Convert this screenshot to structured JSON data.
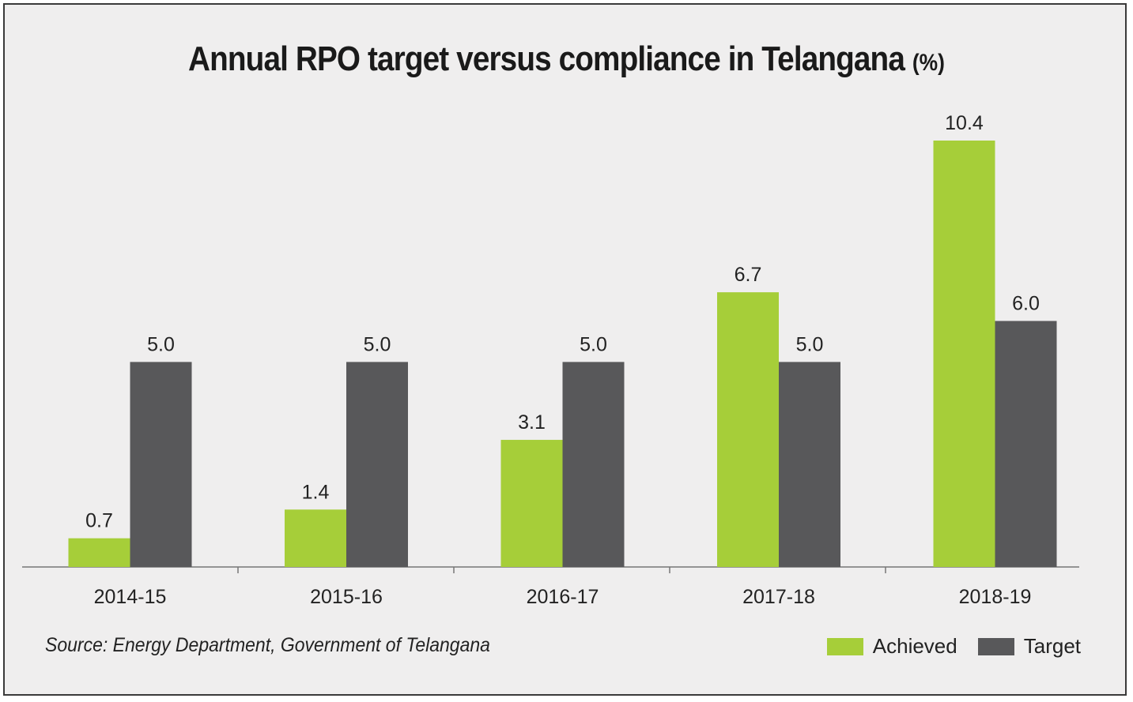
{
  "chart_data": {
    "type": "bar",
    "title": "Annual RPO target versus compliance in Telangana",
    "title_unit": "(%)",
    "categories": [
      "2014-15",
      "2015-16",
      "2016-17",
      "2017-18",
      "2018-19"
    ],
    "series": [
      {
        "name": "Achieved",
        "color": "#a6ce39",
        "values": [
          0.7,
          1.4,
          3.1,
          6.7,
          10.4
        ]
      },
      {
        "name": "Target",
        "color": "#58585a",
        "values": [
          5.0,
          5.0,
          5.0,
          5.0,
          6.0
        ]
      }
    ],
    "value_labels": {
      "Achieved": [
        "0.7",
        "1.4",
        "3.1",
        "6.7",
        "10.4"
      ],
      "Target": [
        "5.0",
        "5.0",
        "5.0",
        "5.0",
        "6.0"
      ]
    },
    "xlabel": "",
    "ylabel": "",
    "ylim": [
      0,
      10.4
    ],
    "grid": false,
    "legend_position": "bottom-right"
  },
  "source": "Source: Energy Department, Government of Telangana"
}
